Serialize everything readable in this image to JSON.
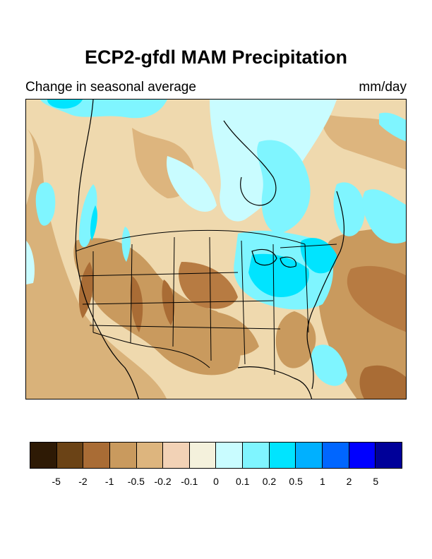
{
  "title": "ECP2-gfdl MAM Precipitation",
  "subtitle_left": "Change in seasonal average",
  "subtitle_right": "mm/day",
  "colorbar": {
    "colors": [
      "#2e1a05",
      "#6b4316",
      "#a96c35",
      "#c99a5e",
      "#ddb57e",
      "#f2d2b6",
      "#f4f1dc",
      "#c9fcff",
      "#7ff5ff",
      "#00e4ff",
      "#00b0ff",
      "#0066ff",
      "#0000ff",
      "#000099"
    ],
    "labels": [
      "-5",
      "-2",
      "-1",
      "-0.5",
      "-0.2",
      "-0.1",
      "0",
      "0.1",
      "0.2",
      "0.5",
      "1",
      "2",
      "5"
    ]
  },
  "map": {
    "region": "North America",
    "season": "MAM",
    "variable": "Precipitation change"
  }
}
